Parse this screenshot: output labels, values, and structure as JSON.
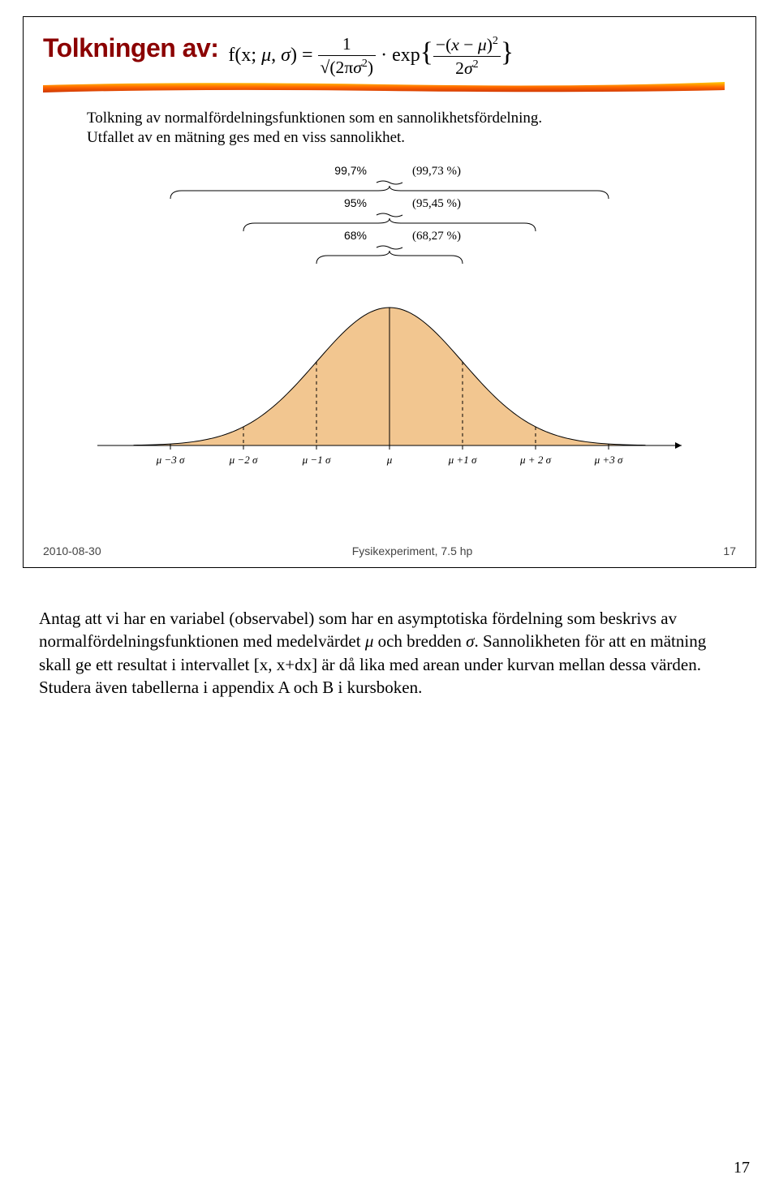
{
  "slide": {
    "title": "Tolkningen av:",
    "formula_html": "f(x; <span class='it'>μ</span>, <span class='it'>σ</span>) = <span class='frac'><span class='num'>1</span><span class='den'>√(2π<span class='it'>σ</span><span class='sup'>2</span>)</span></span> · exp<span style='font-size:1.4em'>{</span><span class='frac'><span class='num'>−(<span class='it'>x</span> − <span class='it'>μ</span>)<span class='sup'>2</span></span><span class='den'>2<span class='it'>σ</span><span class='sup'>2</span></span></span><span style='font-size:1.4em'>}</span>",
    "intro_line1": "Tolkning av normalfördelningsfunktionen som en sannolikhetsfördelning.",
    "intro_line2": "Utfallet av en mätning ges med en viss sannolikhet.",
    "footer_date": "2010-08-30",
    "footer_center": "Fysikexperiment, 7.5 hp",
    "footer_page": "17"
  },
  "bell": {
    "fill_color": "#f2c690",
    "stroke_color": "#000000",
    "bg": "#ffffff",
    "axis_color": "#000000",
    "dash_color": "#000000",
    "brace_color": "#000000",
    "xlabels": [
      "μ −3 σ",
      "μ −2 σ",
      "μ −1 σ",
      "μ",
      "μ +1 σ",
      "μ + 2 σ",
      "μ +3 σ"
    ],
    "xlabel_fontsize": 13,
    "bracket_levels": [
      {
        "pct_pos": "99,7%",
        "refined": "(99,73 %)",
        "sigma": 3
      },
      {
        "pct_pos": "95%",
        "refined": "(95,45 %)",
        "sigma": 2
      },
      {
        "pct_pos": "68%",
        "refined": "(68,27 %)",
        "sigma": 1
      }
    ]
  },
  "underline": {
    "color1": "#ffcc00",
    "color2": "#ff6600",
    "color3": "#cc3300"
  },
  "body": {
    "text": "Antag att vi har en variabel (observabel) som har en asymptotiska fördelning som beskrivs av normalfördelningsfunktionen med medelvärdet μ och bredden σ. Sannolikheten för att en mätning skall ge ett resultat i intervallet [x, x+dx] är då lika med arean under kurvan mellan dessa värden. Studera även tabellerna i appendix A och B i kursboken."
  },
  "pagenum": "17"
}
